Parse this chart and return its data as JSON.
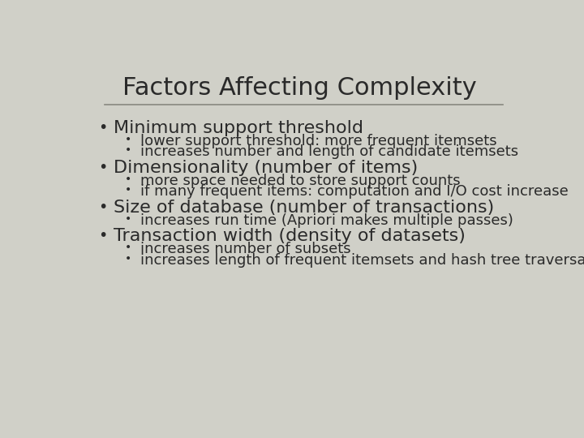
{
  "title": "Factors Affecting Complexity",
  "background_color": "#d0d0c8",
  "text_color": "#2a2a2a",
  "line_color": "#888880",
  "title_fontsize": 22,
  "main_bullet_fontsize": 16,
  "sub_bullet_fontsize": 13,
  "content": [
    {
      "text": "Minimum support threshold",
      "sub": [
        "lower support threshold: more frequent itemsets",
        "increases number and length of candidate itemsets"
      ]
    },
    {
      "text": "Dimensionality (number of items)",
      "sub": [
        "more space needed to store support counts",
        "if many frequent items: computation and I/O cost increase"
      ]
    },
    {
      "text": "Size of database (number of transactions)",
      "sub": [
        "increases run time (Apriori makes multiple passes)"
      ]
    },
    {
      "text": "Transaction width (density of datasets)",
      "sub": [
        "increases number of subsets",
        "increases length of frequent itemsets and hash tree traversals"
      ]
    }
  ]
}
